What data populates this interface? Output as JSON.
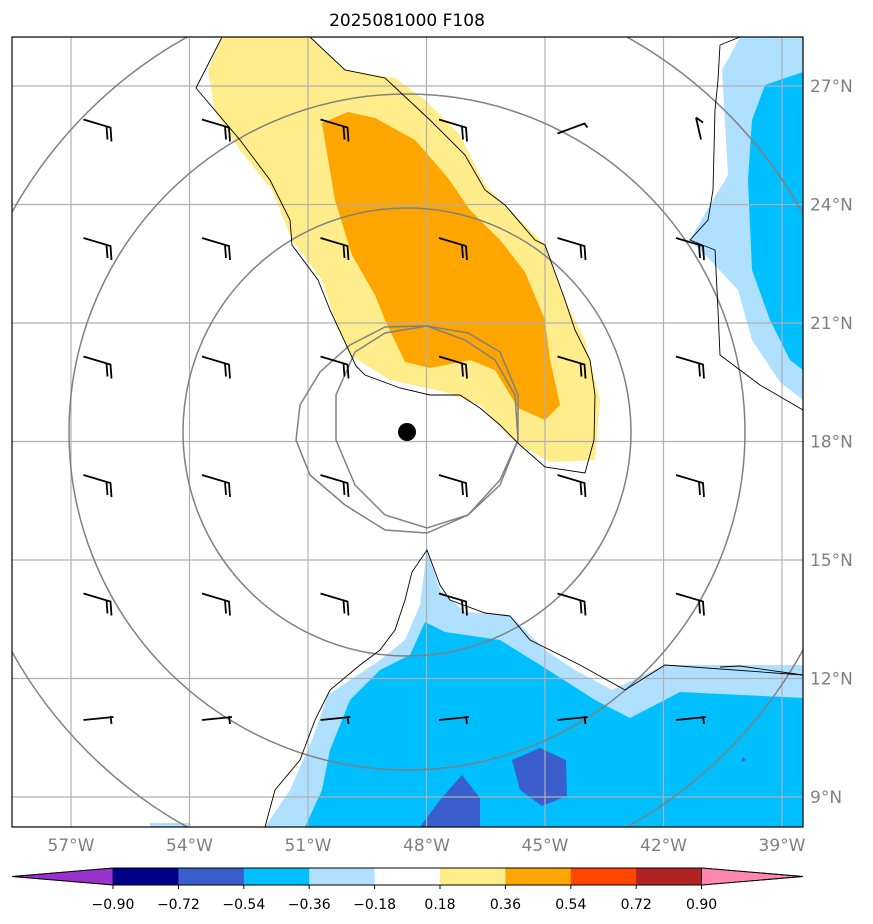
{
  "title": "2025081000 F108",
  "map": {
    "lon_ticks": [
      {
        "value": -57,
        "label": "57°W"
      },
      {
        "value": -54,
        "label": "54°W"
      },
      {
        "value": -51,
        "label": "51°W"
      },
      {
        "value": -48,
        "label": "48°W"
      },
      {
        "value": -45,
        "label": "45°W"
      },
      {
        "value": -42,
        "label": "42°W"
      },
      {
        "value": -39,
        "label": "39°W"
      }
    ],
    "lat_ticks": [
      {
        "value": 27,
        "label": "27°N"
      },
      {
        "value": 24,
        "label": "24°N"
      },
      {
        "value": 21,
        "label": "21°N"
      },
      {
        "value": 18,
        "label": "18°N"
      },
      {
        "value": 15,
        "label": "15°N"
      },
      {
        "value": 12,
        "label": "12°N"
      },
      {
        "value": 9,
        "label": "9°N"
      }
    ],
    "center_marker": {
      "lon": -48.5,
      "lat": 18.3
    },
    "range_ring_count": 4,
    "gridlines": true
  },
  "colorbar": {
    "ticks": [
      "−0.90",
      "−0.72",
      "−0.54",
      "−0.36",
      "−0.18",
      "0.18",
      "0.36",
      "0.54",
      "0.72",
      "0.90"
    ],
    "colors": {
      "under": "#9932cc",
      "bins": [
        "#00008b",
        "#3a5fcd",
        "#00bfff",
        "#b0e0ff",
        "#ffffff",
        "#ffec8b",
        "#ffa500",
        "#ff4500",
        "#b22222",
        "#ff88b0"
      ],
      "over": "#ff88b0"
    }
  },
  "colors": {
    "frame": "#000000",
    "grid": "#b0b0b0",
    "ring": "#808080",
    "tick_label": "#808080"
  }
}
